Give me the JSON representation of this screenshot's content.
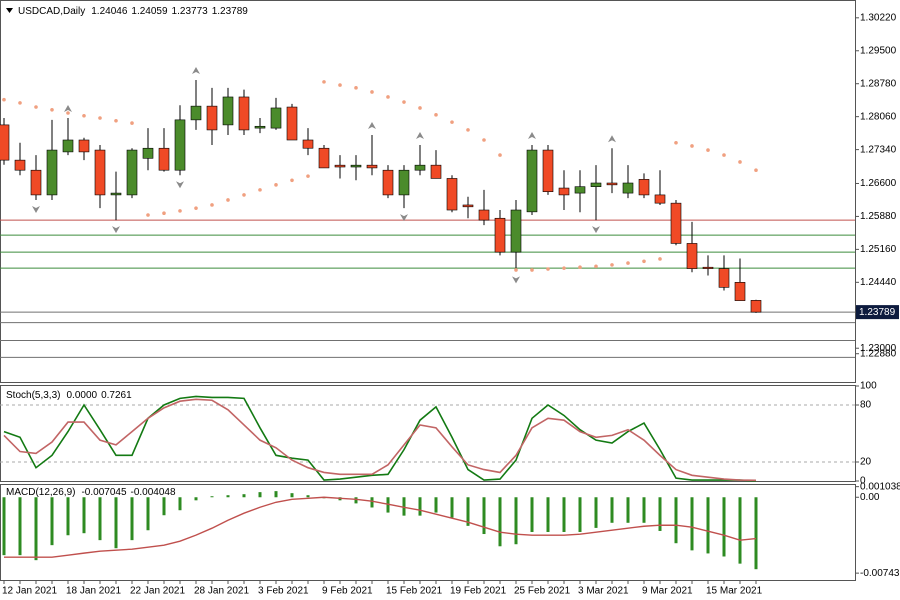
{
  "chart_data": [
    {
      "type": "candlestick",
      "title": "USDCAD,Daily",
      "header_values": [
        "1.24046",
        "1.24059",
        "1.23773",
        "1.23789"
      ],
      "categories": [
        "12 Jan 2021",
        null,
        null,
        null,
        "18 Jan 2021",
        null,
        null,
        null,
        "22 Jan 2021",
        null,
        null,
        null,
        "28 Jan 2021",
        null,
        null,
        null,
        "3 Feb 2021",
        null,
        null,
        null,
        "9 Feb 2021",
        null,
        null,
        null,
        "15 Feb 2021",
        null,
        null,
        null,
        "19 Feb 2021",
        null,
        null,
        null,
        "25 Feb 2021",
        null,
        null,
        null,
        "3 Mar 2021",
        null,
        null,
        null,
        "9 Mar 2021",
        null,
        null,
        null,
        "15 Mar 2021",
        null,
        null,
        null
      ],
      "open": [
        1.2788,
        1.2711,
        1.2689,
        1.2635,
        1.2729,
        1.2755,
        1.2733,
        1.2635,
        1.2635,
        1.2715,
        1.2737,
        1.2689,
        1.2799,
        1.2829,
        1.2788,
        1.2849,
        1.2781,
        1.2781,
        1.2827,
        1.2755,
        1.2737,
        1.27,
        1.2696,
        1.27,
        1.2689,
        1.2635,
        1.2689,
        1.27,
        1.2671,
        1.2613,
        1.2602,
        1.2584,
        1.251,
        1.2598,
        1.2733,
        1.265,
        1.2639,
        1.2653,
        1.2661,
        1.2639,
        1.2669,
        1.2635,
        1.2617,
        1.2529,
        1.2477,
        1.2474,
        1.2444,
        1.24046
      ],
      "high": [
        1.2803,
        1.2749,
        1.2722,
        1.2799,
        1.2803,
        1.276,
        1.2744,
        1.2686,
        1.2737,
        1.2781,
        1.2781,
        1.2831,
        1.2886,
        1.2869,
        1.2869,
        1.2865,
        1.2803,
        1.2847,
        1.2834,
        1.2781,
        1.2744,
        1.2722,
        1.2722,
        1.2766,
        1.27,
        1.27,
        1.2744,
        1.2733,
        1.2678,
        1.2631,
        1.2646,
        1.2602,
        1.2624,
        1.2744,
        1.2744,
        1.2689,
        1.2689,
        1.27,
        1.2737,
        1.27,
        1.2682,
        1.2689,
        1.2624,
        1.2576,
        1.2503,
        1.2503,
        1.2496,
        1.24059
      ],
      "low": [
        1.2701,
        1.2678,
        1.2624,
        1.2624,
        1.2722,
        1.2711,
        1.2606,
        1.258,
        1.2628,
        1.2689,
        1.2686,
        1.2678,
        1.2777,
        1.2744,
        1.2766,
        1.2766,
        1.277,
        1.2777,
        1.2755,
        1.2722,
        1.2694,
        1.2671,
        1.2667,
        1.2678,
        1.2628,
        1.2606,
        1.2678,
        1.2671,
        1.2597,
        1.2584,
        1.2569,
        1.2503,
        1.247,
        1.2591,
        1.2635,
        1.2602,
        1.2597,
        1.258,
        1.2639,
        1.2628,
        1.2628,
        1.2613,
        1.2525,
        1.2466,
        1.2459,
        1.2426,
        1.2404,
        1.23773
      ],
      "close": [
        1.2711,
        1.2689,
        1.2635,
        1.2733,
        1.2755,
        1.2729,
        1.2635,
        1.2639,
        1.2733,
        1.2737,
        1.2689,
        1.2799,
        1.2829,
        1.2777,
        1.2849,
        1.2777,
        1.2785,
        1.2825,
        1.2755,
        1.2737,
        1.2694,
        1.2696,
        1.27,
        1.2694,
        1.2635,
        1.2689,
        1.27,
        1.2671,
        1.2602,
        1.2609,
        1.258,
        1.251,
        1.2602,
        1.2733,
        1.2642,
        1.2635,
        1.2653,
        1.2661,
        1.2657,
        1.2661,
        1.2635,
        1.2617,
        1.2529,
        1.2474,
        1.2474,
        1.2433,
        1.2404,
        1.23789
      ],
      "up_color": "#4b8b2b",
      "down_color": "#f04a26",
      "sar": {
        "color": "#f0a080",
        "values": [
          1.2843,
          1.2836,
          1.2827,
          1.2821,
          1.2814,
          1.2808,
          1.2803,
          1.2797,
          1.2792,
          1.2591,
          1.2595,
          1.26,
          1.2606,
          1.2613,
          1.2624,
          1.2635,
          1.2646,
          1.2657,
          1.2667,
          1.2676,
          1.2882,
          1.2875,
          1.2869,
          1.286,
          1.2849,
          1.2838,
          1.2825,
          1.281,
          1.2794,
          1.2777,
          1.2755,
          1.2722,
          1.2471,
          1.2471,
          1.2473,
          1.2475,
          1.2477,
          1.2479,
          1.2482,
          1.2486,
          1.249,
          1.2495,
          1.2749,
          1.2742,
          1.2733,
          1.2722,
          1.2707,
          1.2689
        ]
      },
      "fractals_up": [
        null,
        null,
        null,
        null,
        1.2803,
        null,
        null,
        null,
        null,
        null,
        null,
        null,
        1.2886,
        null,
        null,
        null,
        null,
        null,
        null,
        null,
        null,
        null,
        null,
        1.2766,
        null,
        null,
        1.2744,
        null,
        null,
        null,
        null,
        null,
        null,
        1.2744,
        null,
        null,
        null,
        null,
        1.2737,
        null,
        null,
        null,
        null,
        null,
        null,
        null,
        null,
        null
      ],
      "fractals_down": [
        null,
        null,
        1.2624,
        null,
        null,
        null,
        null,
        1.258,
        null,
        null,
        null,
        1.2678,
        null,
        null,
        null,
        null,
        null,
        null,
        null,
        null,
        null,
        null,
        null,
        null,
        null,
        1.2606,
        null,
        null,
        null,
        null,
        null,
        null,
        1.247,
        null,
        null,
        null,
        null,
        1.258,
        null,
        null,
        null,
        null,
        null,
        null,
        null,
        null,
        null,
        null
      ],
      "fractal_color": "#8a8a8a",
      "levels": [
        {
          "value": 1.258,
          "color": "#c0504d"
        },
        {
          "value": 1.2547,
          "color": "#3c8c3c"
        },
        {
          "value": 1.251,
          "color": "#3c8c3c"
        },
        {
          "value": 1.2475,
          "color": "#3c8c3c"
        },
        {
          "value": 1.2356,
          "color": "#707070"
        },
        {
          "value": 1.2317,
          "color": "#707070"
        },
        {
          "value": 1.228,
          "color": "#707070"
        }
      ],
      "price_label": {
        "value": 1.23789,
        "label": "1.23789"
      },
      "ylim": [
        1.2224,
        1.305
      ],
      "yticks": [
        {
          "value": 1.3022,
          "label": "1.30220"
        },
        {
          "value": 1.295,
          "label": "1.29500"
        },
        {
          "value": 1.2878,
          "label": "1.28780"
        },
        {
          "value": 1.2806,
          "label": "1.28060"
        },
        {
          "value": 1.2734,
          "label": "1.27340"
        },
        {
          "value": 1.266,
          "label": "1.26600"
        },
        {
          "value": 1.2588,
          "label": "1.25880"
        },
        {
          "value": 1.2516,
          "label": "1.25160"
        },
        {
          "value": 1.2444,
          "label": "1.24440"
        },
        {
          "value": 1.23,
          "label": "1.23000"
        },
        {
          "value": 1.2288,
          "label": "1.22880"
        }
      ]
    },
    {
      "type": "line",
      "title": "Stoch(5,3,3)",
      "header_values": [
        "0.0000",
        "0.7261"
      ],
      "series": [
        {
          "color": "#137a13",
          "values": [
            52,
            46,
            14,
            27,
            52,
            80,
            54,
            27,
            27,
            66,
            80,
            87,
            89,
            88,
            88,
            87,
            56,
            27,
            24,
            22,
            1,
            2,
            4,
            6,
            7,
            33,
            64,
            78,
            46,
            12,
            1,
            2,
            22,
            66,
            80,
            69,
            54,
            43,
            40,
            52,
            61,
            33,
            3,
            1,
            1,
            1,
            1,
            0
          ]
        },
        {
          "color": "#c26565",
          "values": [
            48,
            31,
            29,
            41,
            62,
            62,
            43,
            38,
            52,
            66,
            77,
            84,
            86,
            85,
            75,
            59,
            43,
            35,
            22,
            14,
            9,
            7,
            7,
            7,
            17,
            38,
            59,
            56,
            36,
            17,
            12,
            9,
            27,
            56,
            66,
            64,
            52,
            46,
            48,
            54,
            43,
            27,
            12,
            6,
            4,
            2,
            1,
            0.7261
          ]
        }
      ],
      "ylim": [
        0,
        100
      ],
      "yticks": [
        100,
        80,
        20,
        0
      ]
    },
    {
      "type": "macd",
      "title": "MACD(12,26,9)",
      "header_values": [
        "-0.007045",
        "-0.004048"
      ],
      "histogram": {
        "color": "#2e8b22",
        "values": [
          -0.00567,
          -0.00567,
          -0.00616,
          -0.00469,
          -0.00372,
          -0.00352,
          -0.0042,
          -0.00499,
          -0.0042,
          -0.00323,
          -0.00176,
          -0.00127,
          -0.0003,
          0.0001,
          0.0002,
          0.0003,
          0.0005,
          0.0006,
          0.0004,
          0.0002,
          -0.0001,
          -0.0003,
          -0.0006,
          -0.001,
          -0.0015,
          -0.0018,
          -0.0018,
          -0.0015,
          -0.002,
          -0.0028,
          -0.0036,
          -0.0048,
          -0.0046,
          -0.0034,
          -0.0034,
          -0.0034,
          -0.0034,
          -0.003,
          -0.0025,
          -0.0025,
          -0.0025,
          -0.0033,
          -0.0045,
          -0.0052,
          -0.0055,
          -0.0058,
          -0.0065,
          -0.007045
        ]
      },
      "signal": {
        "color": "#c0504d",
        "values": [
          -0.00587,
          -0.00587,
          -0.00587,
          -0.00587,
          -0.00567,
          -0.00547,
          -0.00528,
          -0.00518,
          -0.00508,
          -0.00489,
          -0.00469,
          -0.0043,
          -0.00371,
          -0.00303,
          -0.00225,
          -0.00156,
          -0.00098,
          -0.00049,
          -0.0002,
          -0.0001,
          0.0,
          -0.0001,
          -0.0002,
          -0.00039,
          -0.00068,
          -0.00098,
          -0.00127,
          -0.00166,
          -0.00205,
          -0.00244,
          -0.00293,
          -0.00342,
          -0.00362,
          -0.00371,
          -0.00371,
          -0.00371,
          -0.00362,
          -0.00342,
          -0.00323,
          -0.00303,
          -0.00284,
          -0.00274,
          -0.00274,
          -0.00293,
          -0.00332,
          -0.00371,
          -0.0042,
          -0.004048
        ]
      },
      "ylim": [
        -0.0082,
        0.0012
      ],
      "yticks": [
        {
          "value": 0.001038,
          "label": "0.001038"
        },
        {
          "value": 0,
          "label": "0.00"
        },
        -0.00743
      ]
    }
  ]
}
